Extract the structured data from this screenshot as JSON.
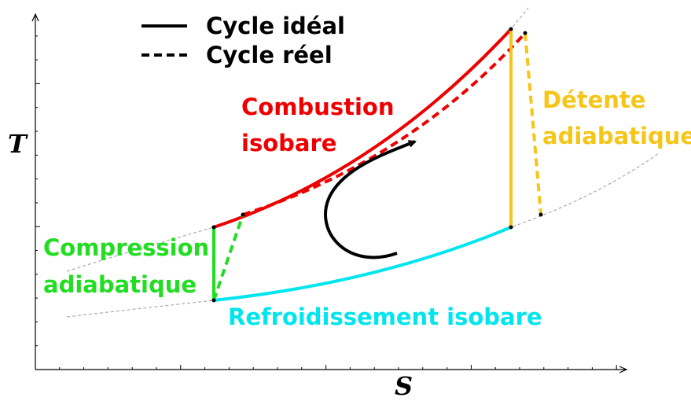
{
  "legend": {
    "ideal": "Cycle idéal",
    "real": "Cycle réel"
  },
  "axes": {
    "y": "T",
    "x": "S"
  },
  "labels": {
    "combustion": [
      "Combustion",
      "isobare"
    ],
    "detente": [
      "Détente",
      "adiabatique"
    ],
    "compression": [
      "Compression",
      "adiabatique"
    ],
    "refroidissement": "Refroidissement isobare"
  }
}
